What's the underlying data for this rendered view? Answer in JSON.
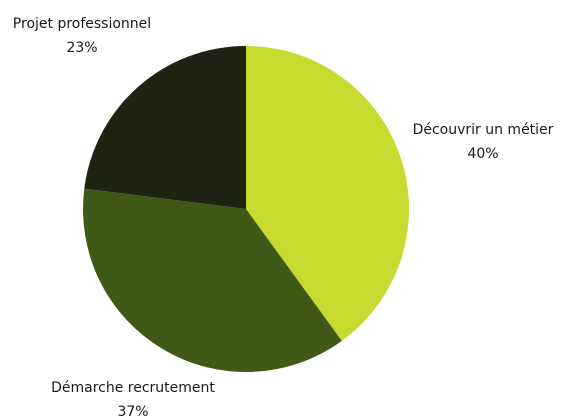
{
  "chart_data": {
    "type": "pie",
    "title": "",
    "slices": [
      {
        "label": "Découvrir un métier",
        "value": 40,
        "value_label": "40%",
        "color": "#c8d930"
      },
      {
        "label": "Démarche recrutement",
        "value": 37,
        "value_label": "37%",
        "color": "#3f5a16"
      },
      {
        "label": "Projet professionnel",
        "value": 23,
        "value_label": "23%",
        "color": "#1f2412"
      }
    ],
    "start_angle_deg": 0,
    "direction": "clockwise",
    "legend": "none"
  }
}
